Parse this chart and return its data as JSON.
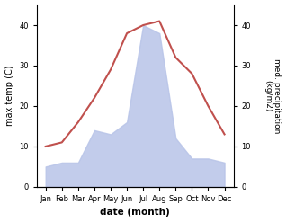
{
  "months": [
    "Jan",
    "Feb",
    "Mar",
    "Apr",
    "May",
    "Jun",
    "Jul",
    "Aug",
    "Sep",
    "Oct",
    "Nov",
    "Dec"
  ],
  "temperature": [
    10,
    11,
    16,
    22,
    29,
    38,
    40,
    41,
    32,
    28,
    20,
    13
  ],
  "precipitation": [
    5,
    6,
    6,
    14,
    13,
    16,
    40,
    38,
    12,
    7,
    7,
    6
  ],
  "temp_color": "#c0504d",
  "precip_fill_color": "#b8c4e8",
  "temp_ylim": [
    0,
    45
  ],
  "precip_ylim": [
    0,
    45
  ],
  "temp_yticks": [
    0,
    10,
    20,
    30,
    40
  ],
  "precip_yticks": [
    0,
    10,
    20,
    30,
    40
  ],
  "xlabel": "date (month)",
  "ylabel_left": "max temp (C)",
  "ylabel_right": "med. precipitation\n(kg/m2)",
  "bg_color": "#ffffff"
}
